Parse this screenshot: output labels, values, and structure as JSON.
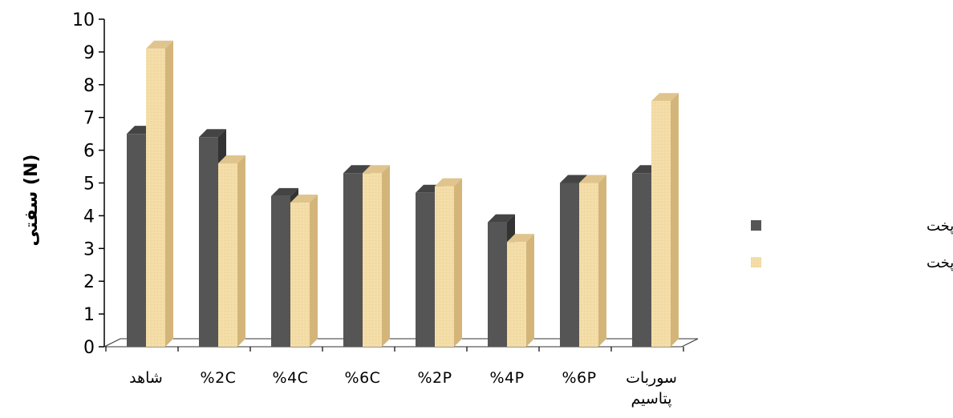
{
  "chart_data": {
    "type": "bar",
    "style": "3d-clustered-column",
    "title": "",
    "xlabel": "",
    "ylabel": "(N) سفتی",
    "ylim": [
      0,
      10
    ],
    "yticks": [
      0,
      1,
      2,
      3,
      4,
      5,
      6,
      7,
      8,
      9,
      10
    ],
    "grid": false,
    "legend_position": "right",
    "categories": [
      "شاهد",
      "%2C",
      "%4C",
      "%6C",
      "%2P",
      "%4P",
      "%6P",
      "سوربات پتاسیم"
    ],
    "series": [
      {
        "name": "سفتی بعد از پخت",
        "color": "#555555",
        "values": [
          6.5,
          6.4,
          4.6,
          5.3,
          4.7,
          3.8,
          5.0,
          5.3
        ]
      },
      {
        "name": "سفتی یک هفته بعد از پخت",
        "color": "#f2d9a0",
        "values": [
          9.1,
          5.6,
          4.4,
          5.3,
          4.9,
          3.2,
          5.0,
          7.5
        ]
      }
    ]
  }
}
